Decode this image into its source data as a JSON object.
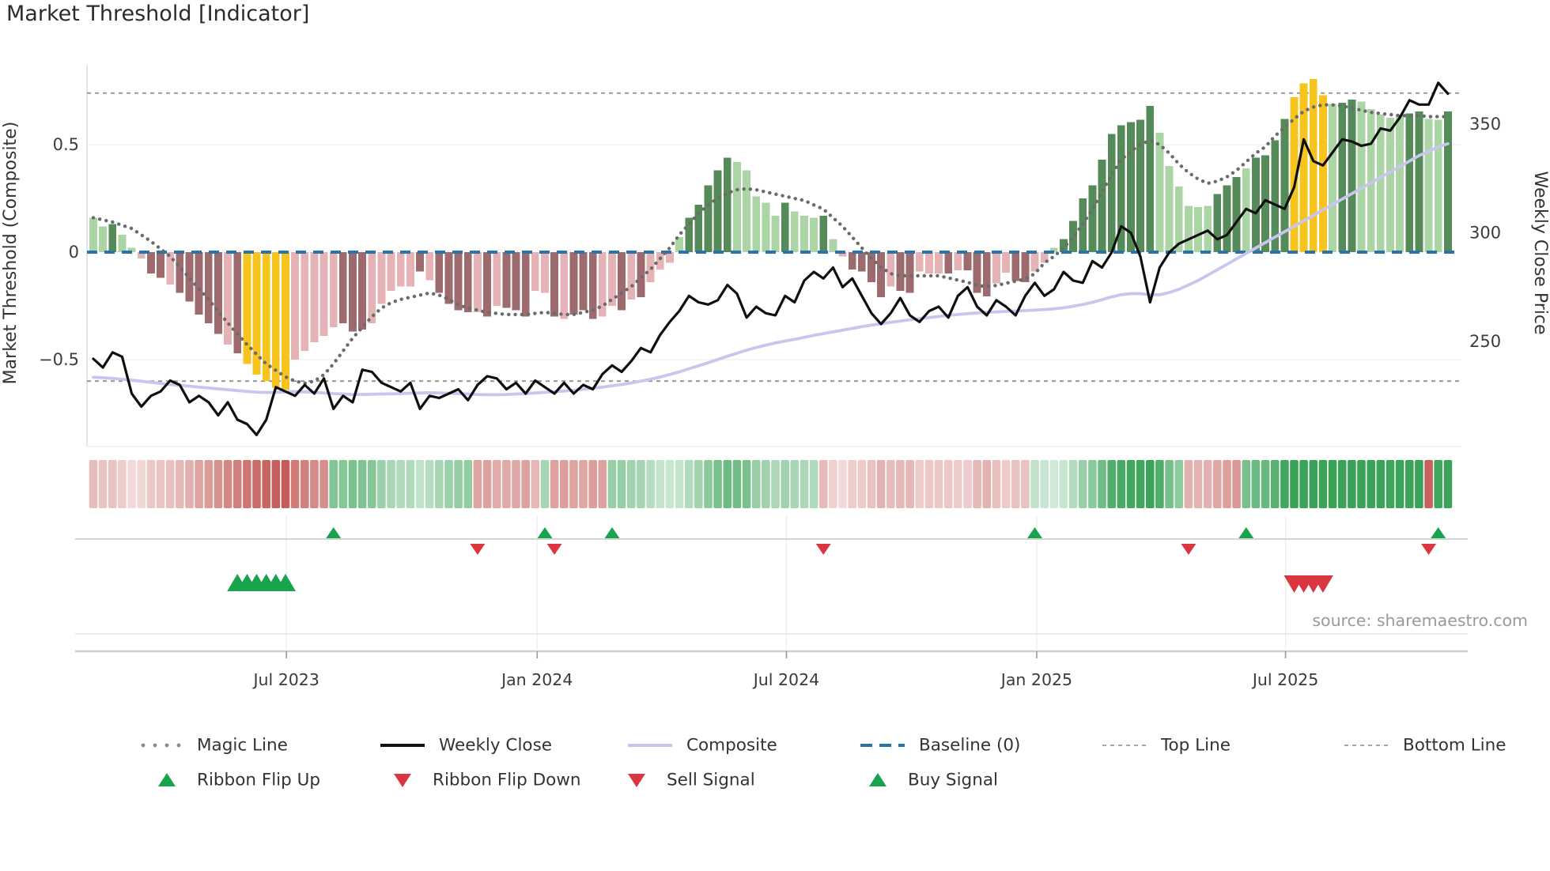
{
  "page": {
    "title": "Market Threshold [Indicator]",
    "source_credit": "source: sharemaestro.com"
  },
  "chart_data": {
    "type": "mixed: histogram + line + scatter-signals + ribbon-heatmap",
    "title": "Market Threshold [Indicator]",
    "left_axis": {
      "label": "Market Threshold (Composite)",
      "ticks": [
        "0.5",
        "0",
        "−0.5"
      ],
      "tick_values": [
        0.5,
        0,
        -0.5
      ],
      "range": [
        -0.88,
        0.87
      ]
    },
    "right_axis": {
      "label": "Weekly Close Price",
      "ticks": [
        "350",
        "300",
        "250"
      ],
      "tick_values": [
        350,
        300,
        250
      ],
      "range": [
        203,
        371
      ]
    },
    "x_axis": {
      "tick_labels": [
        "Jul 2023",
        "Jan 2024",
        "Jul 2024",
        "Jan 2025",
        "Jul 2025"
      ],
      "tick_weeks": [
        20.1,
        46.2,
        72.15,
        98.2,
        124.1
      ],
      "weeks_total": 142,
      "grid": false
    },
    "reference_lines": {
      "baseline": 0,
      "top_line": 0.74,
      "bottom_line": -0.6
    },
    "series": {
      "threshold_histogram": {
        "name": "Market Threshold (Composite) histogram",
        "palette": {
          "L": "#abd5a5",
          "D": "#558b58",
          "P": "#e5b2b5",
          "M": "#9d6b6d",
          "Y": "#f7c31d"
        },
        "palette_meaning": {
          "L": "light-green positive",
          "D": "dark-green positive",
          "P": "pink negative",
          "M": "maroon negative",
          "Y": "yellow extreme"
        },
        "color_codes": "LLDLLPMMPMMMMMPMYYYYYPPPPPMMMPPPPPMPMMMMPMPMMMPPMPMMMPPMPMPPPLDDDDDLLLLLDLLLDLPMMMMPMMPPPMPMMMPPMMPPLDDDDDDDDDDLLLLLLDDDLDDDDYYYYLDDLLLLLDDLLD",
        "values": [
          0.16,
          0.12,
          0.13,
          0.08,
          0.02,
          -0.03,
          -0.1,
          -0.12,
          -0.15,
          -0.19,
          -0.23,
          -0.29,
          -0.33,
          -0.38,
          -0.43,
          -0.47,
          -0.52,
          -0.57,
          -0.6,
          -0.63,
          -0.64,
          -0.5,
          -0.46,
          -0.42,
          -0.39,
          -0.35,
          -0.33,
          -0.37,
          -0.36,
          -0.33,
          -0.24,
          -0.18,
          -0.16,
          -0.16,
          -0.09,
          -0.13,
          -0.19,
          -0.24,
          -0.27,
          -0.28,
          -0.28,
          -0.3,
          -0.25,
          -0.26,
          -0.27,
          -0.3,
          -0.18,
          -0.19,
          -0.3,
          -0.31,
          -0.29,
          -0.27,
          -0.31,
          -0.3,
          -0.25,
          -0.27,
          -0.22,
          -0.21,
          -0.14,
          -0.08,
          -0.05,
          0.07,
          0.16,
          0.22,
          0.31,
          0.38,
          0.44,
          0.42,
          0.38,
          0.26,
          0.23,
          0.17,
          0.23,
          0.19,
          0.17,
          0.16,
          0.17,
          0.06,
          -0.02,
          -0.08,
          -0.09,
          -0.14,
          -0.21,
          -0.16,
          -0.18,
          -0.19,
          -0.09,
          -0.1,
          -0.1,
          -0.1,
          -0.085,
          -0.085,
          -0.19,
          -0.205,
          -0.145,
          -0.095,
          -0.135,
          -0.14,
          -0.09,
          -0.05,
          0.02,
          0.06,
          0.145,
          0.25,
          0.31,
          0.43,
          0.55,
          0.59,
          0.605,
          0.615,
          0.68,
          0.555,
          0.4,
          0.305,
          0.215,
          0.21,
          0.215,
          0.27,
          0.31,
          0.35,
          0.39,
          0.44,
          0.45,
          0.52,
          0.62,
          0.72,
          0.785,
          0.805,
          0.73,
          0.69,
          0.695,
          0.71,
          0.7,
          0.665,
          0.64,
          0.625,
          0.64,
          0.645,
          0.655,
          0.62,
          0.615,
          0.655
        ]
      },
      "weekly_close": {
        "name": "Weekly Close",
        "color": "#0f0f0f",
        "values": [
          242,
          238,
          245,
          243,
          226,
          220,
          225,
          227,
          232,
          230,
          222,
          225,
          222,
          216,
          222,
          214,
          212,
          207,
          214,
          229,
          227,
          225,
          230,
          226,
          233,
          219,
          225,
          222,
          237,
          236,
          231,
          229,
          227,
          231,
          219,
          225,
          224,
          226,
          228,
          223,
          230,
          234,
          233,
          228,
          231,
          226,
          232,
          229,
          226,
          231,
          226,
          230,
          228,
          235,
          239,
          236,
          241,
          247,
          245,
          253,
          259,
          264,
          271,
          268,
          267,
          269,
          276,
          272,
          261,
          266,
          263,
          262,
          271,
          268,
          278,
          282,
          279,
          284,
          275,
          279,
          271,
          263,
          258,
          263,
          270,
          262,
          259,
          264,
          266,
          261,
          271,
          275,
          266,
          262,
          269,
          266,
          262,
          271,
          277,
          271,
          274,
          282,
          278,
          277,
          287,
          284,
          291,
          303,
          300,
          289,
          268,
          284,
          291,
          295,
          297,
          299,
          301,
          297,
          299,
          305,
          311,
          309,
          315,
          313,
          311,
          321,
          343,
          333,
          331,
          337,
          343,
          342,
          340,
          341,
          348,
          347,
          353,
          361,
          359,
          359,
          369,
          364
        ]
      },
      "composite": {
        "name": "Composite",
        "color": "#c9c5ef",
        "values": [
          233.5,
          233.3,
          233,
          232.6,
          232.2,
          231.7,
          231.2,
          230.7,
          230.2,
          229.8,
          229.4,
          229,
          228.6,
          228.2,
          227.8,
          227.4,
          227,
          226.7,
          226.5,
          226.6,
          226.8,
          226.9,
          226.8,
          226.6,
          226.3,
          226,
          225.8,
          225.6,
          225.6,
          225.7,
          225.8,
          225.9,
          226,
          226.2,
          226.3,
          226.4,
          226.3,
          226.2,
          226,
          225.8,
          225.6,
          225.5,
          225.5,
          225.6,
          225.8,
          226,
          226.3,
          226.6,
          226.9,
          227.2,
          227.5,
          228,
          228.5,
          229,
          229.6,
          230.2,
          230.9,
          231.7,
          232.6,
          233.6,
          234.8,
          236,
          237.4,
          238.8,
          240.2,
          241.7,
          243.2,
          244.6,
          246,
          247.2,
          248.3,
          249.3,
          250.2,
          251,
          251.9,
          252.8,
          253.6,
          254.4,
          255.2,
          256,
          256.8,
          257.5,
          258.2,
          258.8,
          259.4,
          260,
          260.5,
          261,
          261.5,
          262,
          262.4,
          262.8,
          263.1,
          263.4,
          263.6,
          263.8,
          264,
          264.2,
          264.4,
          264.7,
          265,
          265.5,
          266.2,
          267,
          268,
          269.2,
          270.5,
          271.5,
          272,
          272,
          271.5,
          271.5,
          272.5,
          274,
          276,
          278,
          280.5,
          283,
          285.5,
          288,
          290.5,
          293,
          295.5,
          298,
          300.5,
          303,
          305.5,
          308,
          310.5,
          313,
          315.5,
          318,
          320.5,
          323,
          325.5,
          328,
          330.5,
          333,
          335.5,
          337.5,
          339.5,
          341
        ]
      },
      "magic_line": {
        "name": "Magic Line",
        "color": "#6b6b6b",
        "values": [
          0.16,
          0.15,
          0.14,
          0.125,
          0.11,
          0.08,
          0.05,
          0.015,
          -0.02,
          -0.07,
          -0.12,
          -0.17,
          -0.22,
          -0.275,
          -0.33,
          -0.38,
          -0.43,
          -0.475,
          -0.52,
          -0.55,
          -0.58,
          -0.6,
          -0.61,
          -0.6,
          -0.57,
          -0.52,
          -0.46,
          -0.4,
          -0.35,
          -0.3,
          -0.26,
          -0.235,
          -0.22,
          -0.21,
          -0.2,
          -0.19,
          -0.2,
          -0.22,
          -0.245,
          -0.26,
          -0.27,
          -0.28,
          -0.285,
          -0.29,
          -0.29,
          -0.29,
          -0.285,
          -0.28,
          -0.285,
          -0.29,
          -0.29,
          -0.28,
          -0.27,
          -0.25,
          -0.22,
          -0.19,
          -0.16,
          -0.12,
          -0.08,
          -0.03,
          0.02,
          0.08,
          0.13,
          0.18,
          0.22,
          0.25,
          0.275,
          0.29,
          0.295,
          0.29,
          0.28,
          0.27,
          0.26,
          0.25,
          0.24,
          0.22,
          0.2,
          0.16,
          0.12,
          0.07,
          0.02,
          -0.03,
          -0.07,
          -0.1,
          -0.11,
          -0.11,
          -0.11,
          -0.11,
          -0.11,
          -0.12,
          -0.13,
          -0.14,
          -0.155,
          -0.16,
          -0.155,
          -0.145,
          -0.135,
          -0.125,
          -0.1,
          -0.05,
          -0.02,
          0.02,
          0.07,
          0.13,
          0.2,
          0.28,
          0.36,
          0.43,
          0.47,
          0.5,
          0.52,
          0.5,
          0.46,
          0.41,
          0.37,
          0.34,
          0.32,
          0.33,
          0.35,
          0.38,
          0.42,
          0.46,
          0.49,
          0.54,
          0.58,
          0.62,
          0.655,
          0.675,
          0.685,
          0.685,
          0.68,
          0.67,
          0.66,
          0.65,
          0.645,
          0.64,
          0.635,
          0.635,
          0.635,
          0.63,
          0.63,
          0.63
        ]
      }
    },
    "signals": {
      "ribbon": {
        "green": "#2f9e4e",
        "red": "#c0534f",
        "start_state": "red"
      },
      "ribbon_flip_up_weeks": [
        25,
        47,
        54,
        98,
        120,
        140
      ],
      "ribbon_flip_down_weeks": [
        40,
        48,
        76,
        114,
        139
      ],
      "buy_signal_weeks": [
        15,
        16,
        17,
        18,
        19,
        20
      ],
      "sell_signal_weeks": [
        125,
        126,
        127,
        128
      ],
      "marker_colors": {
        "up": "#18a34d",
        "down": "#d93640"
      }
    },
    "legend": {
      "row1": [
        {
          "label": "Magic Line",
          "swatch": "dotted-gray"
        },
        {
          "label": "Weekly Close",
          "swatch": "solid-black"
        },
        {
          "label": "Composite",
          "swatch": "solid-lavender"
        },
        {
          "label": "Baseline (0)",
          "swatch": "dashed-blue"
        },
        {
          "label": "Top Line",
          "swatch": "dashed-gray"
        },
        {
          "label": "Bottom Line",
          "swatch": "dashed-gray"
        }
      ],
      "row2": [
        {
          "label": "Ribbon Flip Up",
          "swatch": "triangle-up-green"
        },
        {
          "label": "Ribbon Flip Down",
          "swatch": "triangle-down-red"
        },
        {
          "label": "Sell Signal",
          "swatch": "triangle-down-red"
        },
        {
          "label": "Buy Signal",
          "swatch": "triangle-up-green"
        }
      ]
    },
    "colors": {
      "baseline_blue": "#2b74a8",
      "ref_dash_gray": "#909090",
      "grid": "#eef0f6"
    }
  }
}
